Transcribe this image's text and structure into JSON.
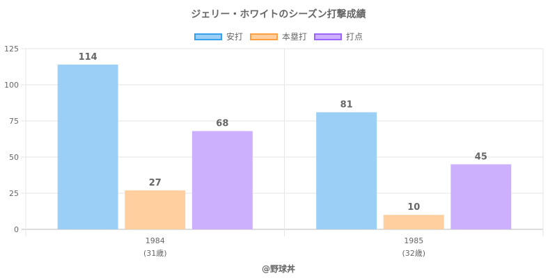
{
  "chart_data": {
    "type": "bar",
    "title": "ジェリー・ホワイトのシーズン打撃成績",
    "categories": [
      "1984",
      "1985"
    ],
    "category_sublabels": [
      "(31歳)",
      "(32歳)"
    ],
    "series": [
      {
        "name": "安打",
        "values": [
          114,
          81
        ],
        "color": "#9bcff5",
        "border": "#36a2eb"
      },
      {
        "name": "本塁打",
        "values": [
          27,
          10
        ],
        "color": "#ffcf9f",
        "border": "#ff9f40"
      },
      {
        "name": "打点",
        "values": [
          68,
          45
        ],
        "color": "#cdb0fd",
        "border": "#9966ff"
      }
    ],
    "ylim": [
      0,
      125
    ],
    "yticks": [
      0,
      25,
      50,
      75,
      100,
      125
    ],
    "grid": true,
    "legend_position": "top"
  },
  "credit": "@野球丼"
}
